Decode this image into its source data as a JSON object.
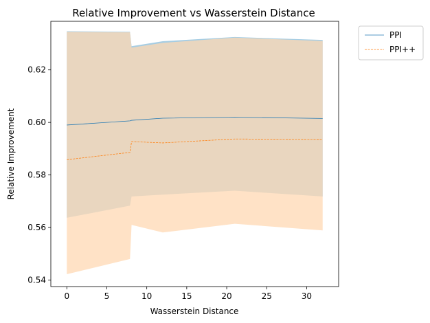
{
  "chart_data": {
    "type": "line",
    "title": "Relative Improvement vs Wasserstein Distance",
    "xlabel": "Wasserstein Distance",
    "ylabel": "Relative Improvement",
    "xlim": [
      -2.0,
      34.0
    ],
    "ylim": [
      0.5375,
      0.6385
    ],
    "xticks": [
      0,
      5,
      10,
      15,
      20,
      25,
      30
    ],
    "xtick_labels": [
      "0",
      "5",
      "10",
      "15",
      "20",
      "25",
      "30"
    ],
    "yticks": [
      0.54,
      0.56,
      0.58,
      0.6,
      0.62
    ],
    "ytick_labels": [
      "0.54",
      "0.56",
      "0.58",
      "0.60",
      "0.62"
    ],
    "grid": false,
    "legend_position": "outside-top-right",
    "series": [
      {
        "name": "PPI",
        "color": "#1f77b4",
        "line_style": "solid",
        "band_color": "#a6cde3",
        "points": [
          {
            "x": 0,
            "y": 0.599,
            "lower": 0.5637,
            "upper": 0.6347
          },
          {
            "x": 7.9,
            "y": 0.6006,
            "lower": 0.5683,
            "upper": 0.6345
          },
          {
            "x": 8.1,
            "y": 0.6008,
            "lower": 0.5718,
            "upper": 0.629
          },
          {
            "x": 12,
            "y": 0.6016,
            "lower": 0.5725,
            "upper": 0.6309
          },
          {
            "x": 21,
            "y": 0.602,
            "lower": 0.574,
            "upper": 0.6325
          },
          {
            "x": 32,
            "y": 0.6015,
            "lower": 0.5718,
            "upper": 0.6314
          }
        ]
      },
      {
        "name": "PPI++",
        "color": "#ff7f0e",
        "line_style": "dashed",
        "band_color": "#ffd8b3",
        "points": [
          {
            "x": 0,
            "y": 0.5858,
            "lower": 0.5422,
            "upper": 0.6345
          },
          {
            "x": 7.9,
            "y": 0.5886,
            "lower": 0.548,
            "upper": 0.6343
          },
          {
            "x": 8.1,
            "y": 0.5927,
            "lower": 0.561,
            "upper": 0.6285
          },
          {
            "x": 12,
            "y": 0.5922,
            "lower": 0.5581,
            "upper": 0.6303
          },
          {
            "x": 21,
            "y": 0.5937,
            "lower": 0.5614,
            "upper": 0.6323
          },
          {
            "x": 32,
            "y": 0.5935,
            "lower": 0.5589,
            "upper": 0.631
          }
        ]
      }
    ]
  }
}
